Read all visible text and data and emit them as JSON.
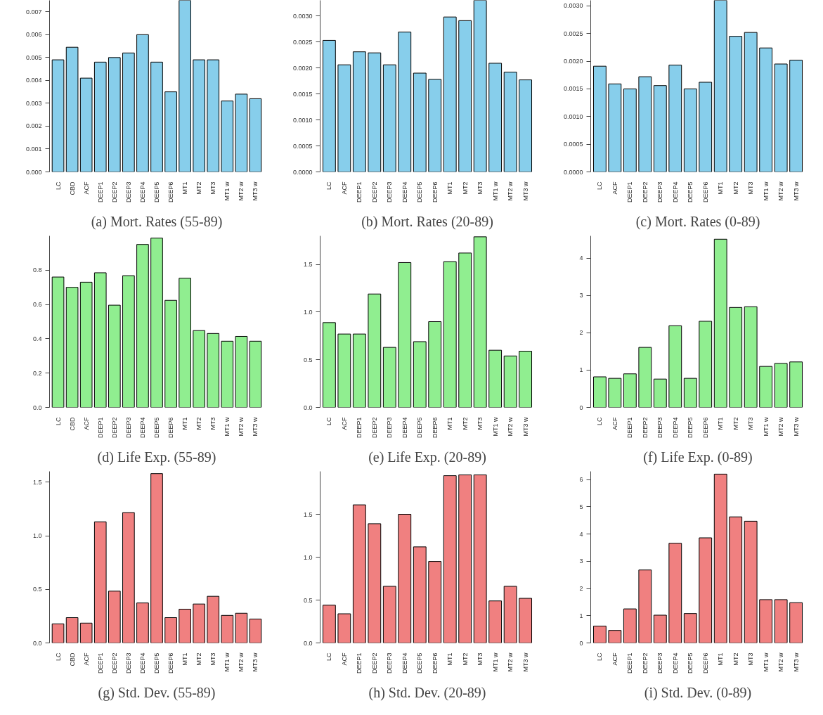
{
  "chart_data": [
    {
      "type": "bar",
      "title": "(a) Mort. Rates (55-89)",
      "categories": [
        "LC",
        "CBD",
        "ACF",
        "DEEP1",
        "DEEP2",
        "DEEP3",
        "DEEP4",
        "DEEP5",
        "DEEP6",
        "MT1",
        "MT2",
        "MT3",
        "MT1 w",
        "MT2 w",
        "MT3 w"
      ],
      "values": [
        0.0049,
        0.00545,
        0.0041,
        0.0048,
        0.005,
        0.0052,
        0.006,
        0.0048,
        0.0035,
        0.0075,
        0.0049,
        0.0049,
        0.0031,
        0.0034,
        0.0032
      ],
      "color": "#87ceeb",
      "ylim": [
        0,
        0.0075
      ],
      "yticks": [
        {
          "value": 0,
          "label": "0.000"
        },
        0.001,
        0.002,
        0.003,
        0.004,
        0.005,
        0.006,
        0.007
      ]
    },
    {
      "type": "bar",
      "title": "(b) Mort. Rates (20-89)",
      "categories": [
        "LC",
        "ACF",
        "DEEP1",
        "DEEP2",
        "DEEP3",
        "DEEP4",
        "DEEP5",
        "DEEP6",
        "MT1",
        "MT2",
        "MT3",
        "MT1 w",
        "MT2 w",
        "MT3 w"
      ],
      "values": [
        0.00253,
        0.00206,
        0.00231,
        0.00229,
        0.00206,
        0.00269,
        0.0019,
        0.00178,
        0.00298,
        0.00291,
        0.0033,
        0.00209,
        0.00192,
        0.00177
      ],
      "color": "#87ceeb",
      "ylim": [
        0,
        0.0033
      ],
      "yticks": [
        {
          "value": 0,
          "label": "0.0000"
        },
        0.0005,
        {
          "value": 0.001,
          "label": "0.0010"
        },
        0.0015,
        {
          "value": 0.002,
          "label": "0.0020"
        },
        0.0025,
        {
          "value": 0.003,
          "label": "0.0030"
        }
      ]
    },
    {
      "type": "bar",
      "title": "(c) Mort. Rates (0-89)",
      "categories": [
        "LC",
        "ACF",
        "DEEP1",
        "DEEP2",
        "DEEP3",
        "DEEP4",
        "DEEP5",
        "DEEP6",
        "MT1",
        "MT2",
        "MT3",
        "MT1 w",
        "MT2 w",
        "MT3 w"
      ],
      "values": [
        0.00191,
        0.00159,
        0.0015,
        0.00172,
        0.00156,
        0.00193,
        0.0015,
        0.00162,
        0.0031,
        0.00245,
        0.00252,
        0.00224,
        0.00195,
        0.00202
      ],
      "color": "#87ceeb",
      "ylim": [
        0,
        0.0031
      ],
      "yticks": [
        {
          "value": 0,
          "label": "0.0000"
        },
        0.0005,
        {
          "value": 0.001,
          "label": "0.0010"
        },
        0.0015,
        {
          "value": 0.002,
          "label": "0.0020"
        },
        0.0025,
        {
          "value": 0.003,
          "label": "0.0030"
        }
      ]
    },
    {
      "type": "bar",
      "title": "(d) Life Exp. (55-89)",
      "categories": [
        "LC",
        "CBD",
        "ACF",
        "DEEP1",
        "DEEP2",
        "DEEP3",
        "DEEP4",
        "DEEP5",
        "DEEP6",
        "MT1",
        "MT2",
        "MT3",
        "MT1 w",
        "MT2 w",
        "MT3 w"
      ],
      "values": [
        0.76,
        0.7,
        0.73,
        0.785,
        0.596,
        0.768,
        0.95,
        0.987,
        0.624,
        0.753,
        0.448,
        0.431,
        0.386,
        0.414,
        0.386
      ],
      "color": "#90ee90",
      "ylim": [
        0,
        1.0
      ],
      "yticks": [
        {
          "value": 0,
          "label": "0.0"
        },
        0.2,
        0.4,
        0.6,
        0.8
      ]
    },
    {
      "type": "bar",
      "title": "(e) Life Exp. (20-89)",
      "categories": [
        "LC",
        "ACF",
        "DEEP1",
        "DEEP2",
        "DEEP3",
        "DEEP4",
        "DEEP5",
        "DEEP6",
        "MT1",
        "MT2",
        "MT3",
        "MT1 w",
        "MT2 w",
        "MT3 w"
      ],
      "values": [
        0.89,
        0.77,
        0.77,
        1.19,
        0.63,
        1.52,
        0.69,
        0.9,
        1.53,
        1.62,
        1.79,
        0.6,
        0.54,
        0.59
      ],
      "color": "#90ee90",
      "ylim": [
        0,
        1.8
      ],
      "yticks": [
        {
          "value": 0,
          "label": "0.0"
        },
        0.5,
        {
          "value": 1,
          "label": "1.0"
        },
        1.5
      ]
    },
    {
      "type": "bar",
      "title": "(f) Life Exp. (0-89)",
      "categories": [
        "LC",
        "ACF",
        "DEEP1",
        "DEEP2",
        "DEEP3",
        "DEEP4",
        "DEEP5",
        "DEEP6",
        "MT1",
        "MT2",
        "MT3",
        "MT1 w",
        "MT2 w",
        "MT3 w"
      ],
      "values": [
        0.82,
        0.78,
        0.9,
        1.61,
        0.76,
        2.19,
        0.78,
        2.31,
        4.51,
        2.68,
        2.7,
        1.1,
        1.18,
        1.22
      ],
      "color": "#90ee90",
      "ylim": [
        0,
        4.6
      ],
      "yticks": [
        0,
        1,
        2,
        3,
        4
      ]
    },
    {
      "type": "bar",
      "title": "(g) Std. Dev. (55-89)",
      "categories": [
        "LC",
        "CBD",
        "ACF",
        "DEEP1",
        "DEEP2",
        "DEEP3",
        "DEEP4",
        "DEEP5",
        "DEEP6",
        "MT1",
        "MT2",
        "MT3",
        "MT1 w",
        "MT2 w",
        "MT3 w"
      ],
      "values": [
        0.178,
        0.236,
        0.185,
        1.13,
        0.483,
        1.216,
        0.373,
        1.579,
        0.236,
        0.315,
        0.363,
        0.435,
        0.257,
        0.277,
        0.223
      ],
      "color": "#f08080",
      "ylim": [
        0,
        1.6
      ],
      "yticks": [
        {
          "value": 0,
          "label": "0.0"
        },
        0.5,
        {
          "value": 1,
          "label": "1.0"
        },
        1.5
      ]
    },
    {
      "type": "bar",
      "title": "(h) Std. Dev. (20-89)",
      "categories": [
        "LC",
        "ACF",
        "DEEP1",
        "DEEP2",
        "DEEP3",
        "DEEP4",
        "DEEP5",
        "DEEP6",
        "MT1",
        "MT2",
        "MT3",
        "MT1 w",
        "MT2 w",
        "MT3 w"
      ],
      "values": [
        0.44,
        0.34,
        1.61,
        1.39,
        0.66,
        1.5,
        1.12,
        0.95,
        1.95,
        1.96,
        1.96,
        0.49,
        0.66,
        0.52
      ],
      "color": "#f08080",
      "ylim": [
        0,
        2.0
      ],
      "yticks": [
        {
          "value": 0,
          "label": "0.0"
        },
        0.5,
        {
          "value": 1,
          "label": "1.0"
        },
        1.5
      ]
    },
    {
      "type": "bar",
      "title": "(i) Std. Dev. (0-89)",
      "categories": [
        "LC",
        "ACF",
        "DEEP1",
        "DEEP2",
        "DEEP3",
        "DEEP4",
        "DEEP5",
        "DEEP6",
        "MT1",
        "MT2",
        "MT3",
        "MT1 w",
        "MT2 w",
        "MT3 w"
      ],
      "values": [
        0.62,
        0.46,
        1.25,
        2.68,
        1.02,
        3.66,
        1.08,
        3.86,
        6.2,
        4.63,
        4.47,
        1.59,
        1.59,
        1.48
      ],
      "color": "#f08080",
      "ylim": [
        0,
        6.3
      ],
      "yticks": [
        0,
        1,
        2,
        3,
        4,
        5,
        6
      ]
    }
  ]
}
